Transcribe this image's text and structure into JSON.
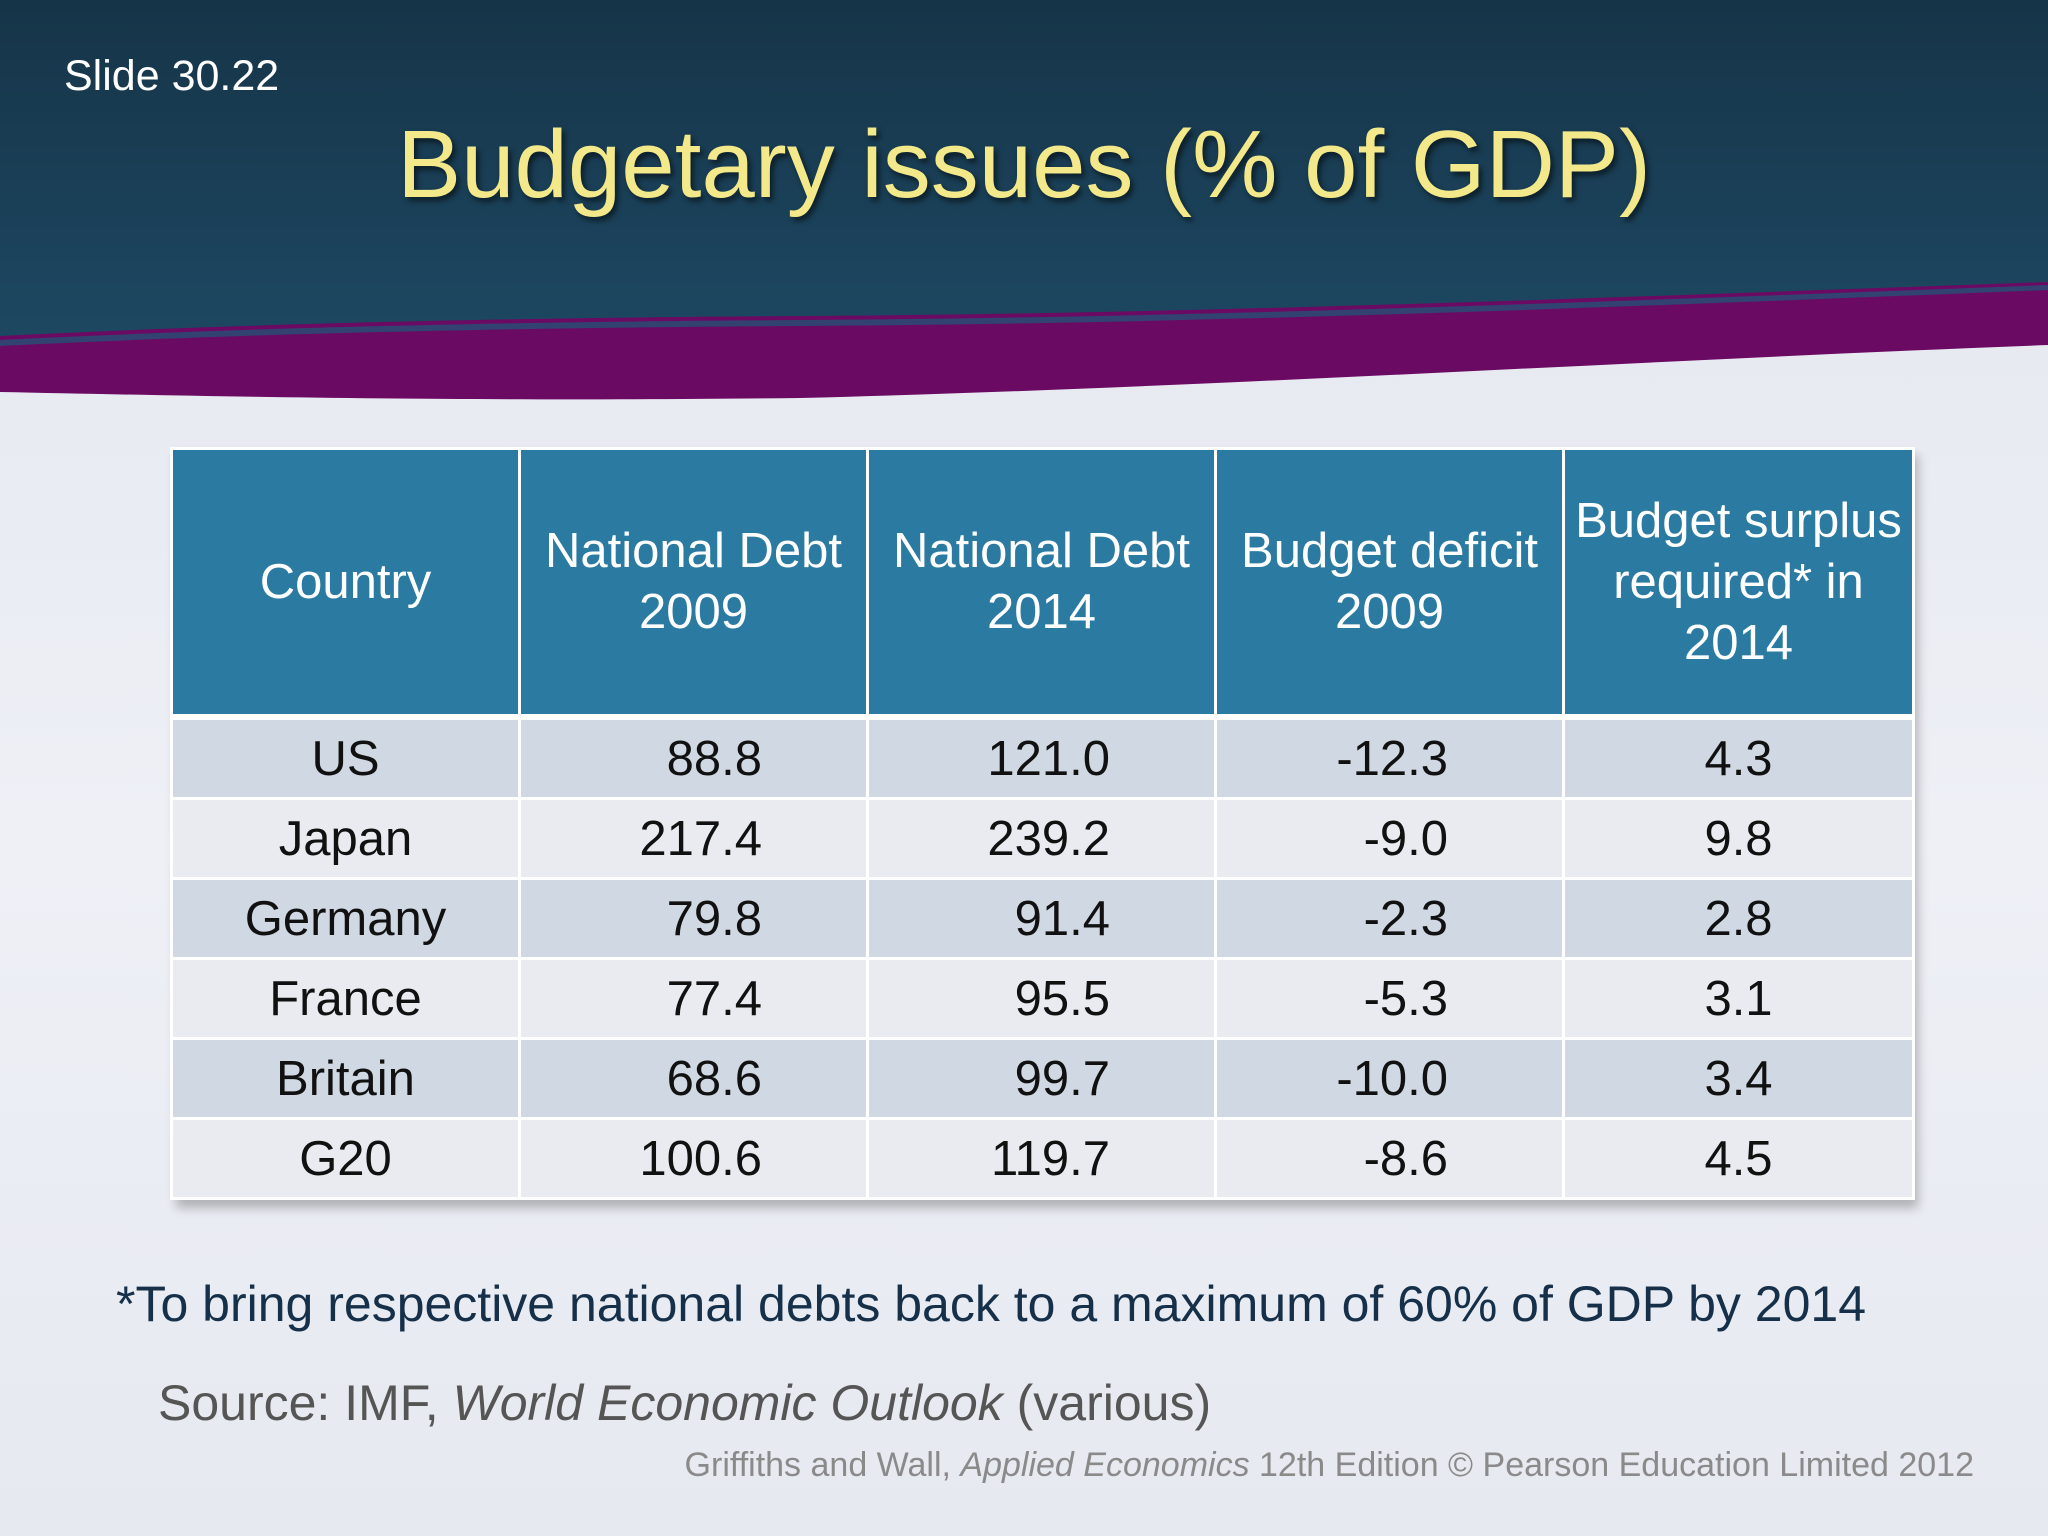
{
  "slide": {
    "number": "Slide 30.22",
    "title": "Budgetary issues (% of GDP)"
  },
  "colors": {
    "header_background": "#173e58",
    "band_purple": "#6b0a62",
    "title_yellow": "#f3e98a",
    "table_header": "#2b7aa1",
    "row_shaded": "#cfd8e3",
    "row_light": "#e9ebf0"
  },
  "table": {
    "headers": {
      "country": "Country",
      "debt_2009": "National Debt 2009",
      "debt_2014": "National Debt 2014",
      "deficit_2009": "Budget deficit 2009",
      "surplus_2014": "Budget surplus required* in 2014"
    },
    "rows": [
      {
        "country": "US",
        "debt_2009": "88.8",
        "debt_2014": "121.0",
        "deficit_2009": "-12.3",
        "surplus_2014": "4.3"
      },
      {
        "country": "Japan",
        "debt_2009": "217.4",
        "debt_2014": "239.2",
        "deficit_2009": "-9.0",
        "surplus_2014": "9.8"
      },
      {
        "country": "Germany",
        "debt_2009": "79.8",
        "debt_2014": "91.4",
        "deficit_2009": "-2.3",
        "surplus_2014": "2.8"
      },
      {
        "country": "France",
        "debt_2009": "77.4",
        "debt_2014": "95.5",
        "deficit_2009": "-5.3",
        "surplus_2014": "3.1"
      },
      {
        "country": "Britain",
        "debt_2009": "68.6",
        "debt_2014": "99.7",
        "deficit_2009": "-10.0",
        "surplus_2014": "3.4"
      },
      {
        "country": "G20",
        "debt_2009": "100.6",
        "debt_2014": "119.7",
        "deficit_2009": "-8.6",
        "surplus_2014": "4.5"
      }
    ]
  },
  "footnote": "*To bring respective national debts back to a maximum of 60% of GDP by 2014",
  "source": {
    "prefix": "Source: IMF, ",
    "publication": "World Economic Outlook",
    "suffix": " (various)"
  },
  "copyright": {
    "authors": "Griffiths and Wall, ",
    "book": "Applied Economics",
    "rest": " 12th Edition © Pearson Education Limited 2012"
  }
}
